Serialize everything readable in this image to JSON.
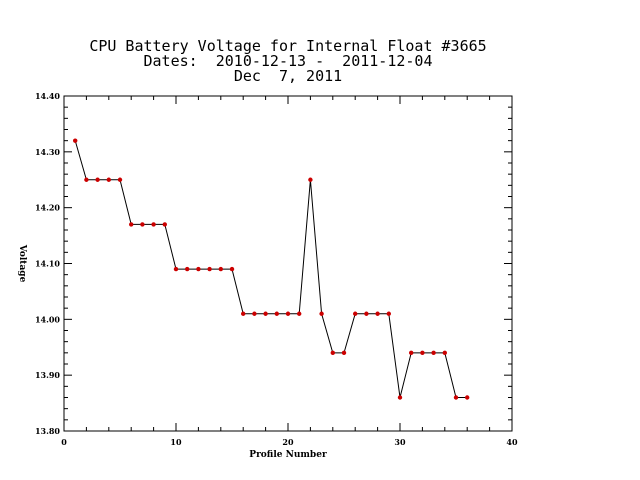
{
  "chart_data": {
    "type": "line",
    "title": "CPU Battery Voltage for Internal Float #3665",
    "subtitle": "Dates:  2010-12-13 -  2011-12-04",
    "date_line": "Dec  7, 2011",
    "xlabel": "Profile Number",
    "ylabel": "Voltage",
    "xlim": [
      0,
      40
    ],
    "ylim": [
      13.8,
      14.4
    ],
    "x_ticks": [
      "0",
      "10",
      "20",
      "30",
      "40"
    ],
    "y_ticks": [
      "13.80",
      "13.90",
      "14.00",
      "14.10",
      "14.20",
      "14.30",
      "14.40"
    ],
    "grid": false,
    "marker_color": "#cc0000",
    "line_color": "#000000",
    "x": [
      1,
      2,
      3,
      4,
      5,
      6,
      7,
      8,
      9,
      10,
      11,
      12,
      13,
      14,
      15,
      16,
      17,
      18,
      19,
      20,
      21,
      22,
      23,
      24,
      25,
      26,
      27,
      28,
      29,
      30,
      31,
      32,
      33,
      34,
      35,
      36
    ],
    "values": [
      14.32,
      14.25,
      14.25,
      14.25,
      14.25,
      14.17,
      14.17,
      14.17,
      14.17,
      14.09,
      14.09,
      14.09,
      14.09,
      14.09,
      14.09,
      14.01,
      14.01,
      14.01,
      14.01,
      14.01,
      14.01,
      14.25,
      14.01,
      13.94,
      13.94,
      14.01,
      14.01,
      14.01,
      14.01,
      13.86,
      13.94,
      13.94,
      13.94,
      13.94,
      13.86,
      13.86
    ]
  }
}
